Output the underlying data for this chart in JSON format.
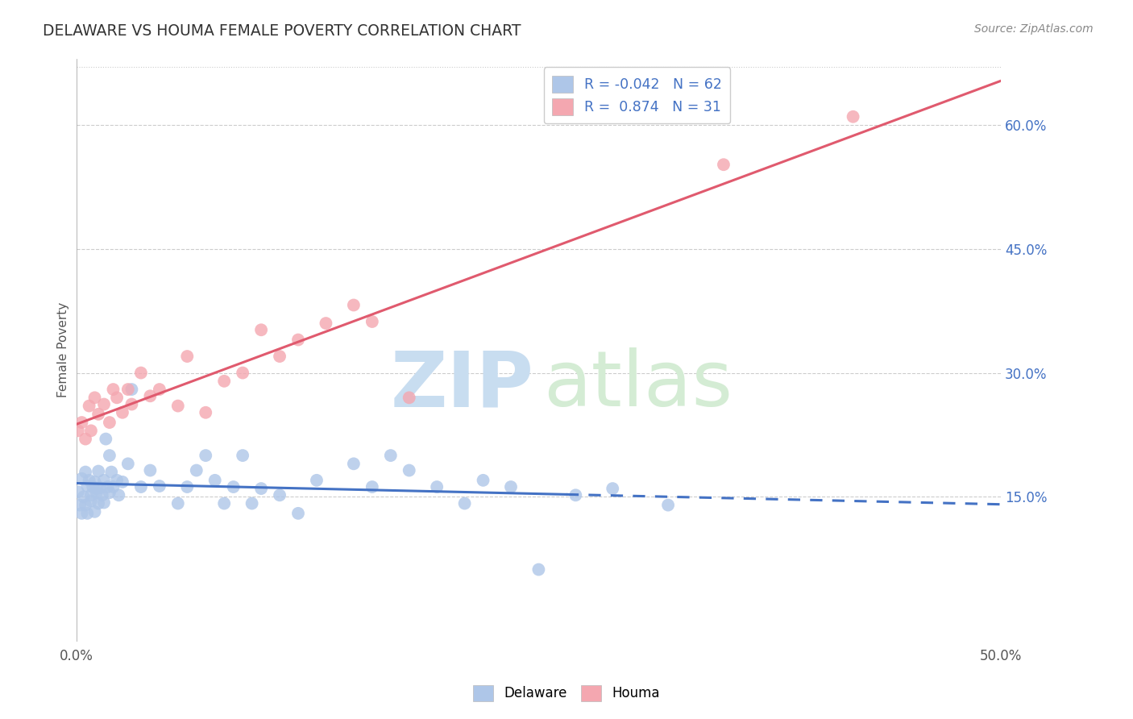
{
  "title": "DELAWARE VS HOUMA FEMALE POVERTY CORRELATION CHART",
  "source": "Source: ZipAtlas.com",
  "ylabel": "Female Poverty",
  "xlim": [
    0.0,
    0.5
  ],
  "ylim": [
    -0.025,
    0.68
  ],
  "yticks_right": [
    0.15,
    0.3,
    0.45,
    0.6
  ],
  "ytick_right_labels": [
    "15.0%",
    "30.0%",
    "45.0%",
    "60.0%"
  ],
  "grid_color": "#cccccc",
  "background_color": "#ffffff",
  "delaware_color": "#aec6e8",
  "houma_color": "#f4a7b0",
  "delaware_line_color": "#4472c4",
  "houma_line_color": "#e05a6e",
  "legend_label_delaware": "R = -0.042   N = 62",
  "legend_label_houma": "R =  0.874   N = 31",
  "delaware_N": 62,
  "houma_N": 31,
  "delaware_x": [
    0.001,
    0.002,
    0.003,
    0.003,
    0.004,
    0.005,
    0.005,
    0.006,
    0.006,
    0.007,
    0.008,
    0.008,
    0.009,
    0.01,
    0.01,
    0.011,
    0.011,
    0.012,
    0.012,
    0.013,
    0.014,
    0.015,
    0.015,
    0.016,
    0.017,
    0.018,
    0.018,
    0.019,
    0.02,
    0.022,
    0.023,
    0.025,
    0.028,
    0.03,
    0.035,
    0.04,
    0.045,
    0.055,
    0.06,
    0.065,
    0.07,
    0.075,
    0.08,
    0.085,
    0.09,
    0.095,
    0.1,
    0.11,
    0.12,
    0.13,
    0.15,
    0.16,
    0.17,
    0.18,
    0.195,
    0.21,
    0.22,
    0.235,
    0.25,
    0.27,
    0.29,
    0.32
  ],
  "delaware_y": [
    0.156,
    0.14,
    0.13,
    0.172,
    0.15,
    0.18,
    0.14,
    0.163,
    0.13,
    0.17,
    0.152,
    0.145,
    0.162,
    0.168,
    0.132,
    0.16,
    0.155,
    0.142,
    0.181,
    0.161,
    0.152,
    0.143,
    0.17,
    0.22,
    0.162,
    0.155,
    0.2,
    0.18,
    0.162,
    0.17,
    0.152,
    0.168,
    0.19,
    0.28,
    0.162,
    0.182,
    0.163,
    0.142,
    0.162,
    0.182,
    0.2,
    0.17,
    0.142,
    0.162,
    0.2,
    0.142,
    0.16,
    0.152,
    0.13,
    0.17,
    0.19,
    0.162,
    0.2,
    0.182,
    0.162,
    0.142,
    0.17,
    0.162,
    0.062,
    0.152,
    0.16,
    0.14
  ],
  "houma_x": [
    0.001,
    0.003,
    0.005,
    0.007,
    0.008,
    0.01,
    0.012,
    0.015,
    0.018,
    0.02,
    0.022,
    0.025,
    0.028,
    0.03,
    0.035,
    0.04,
    0.045,
    0.055,
    0.06,
    0.07,
    0.08,
    0.09,
    0.1,
    0.11,
    0.12,
    0.135,
    0.15,
    0.16,
    0.18,
    0.35,
    0.42
  ],
  "houma_y": [
    0.23,
    0.24,
    0.22,
    0.26,
    0.23,
    0.27,
    0.25,
    0.262,
    0.24,
    0.28,
    0.27,
    0.252,
    0.28,
    0.262,
    0.3,
    0.272,
    0.28,
    0.26,
    0.32,
    0.252,
    0.29,
    0.3,
    0.352,
    0.32,
    0.34,
    0.36,
    0.382,
    0.362,
    0.27,
    0.552,
    0.61
  ]
}
